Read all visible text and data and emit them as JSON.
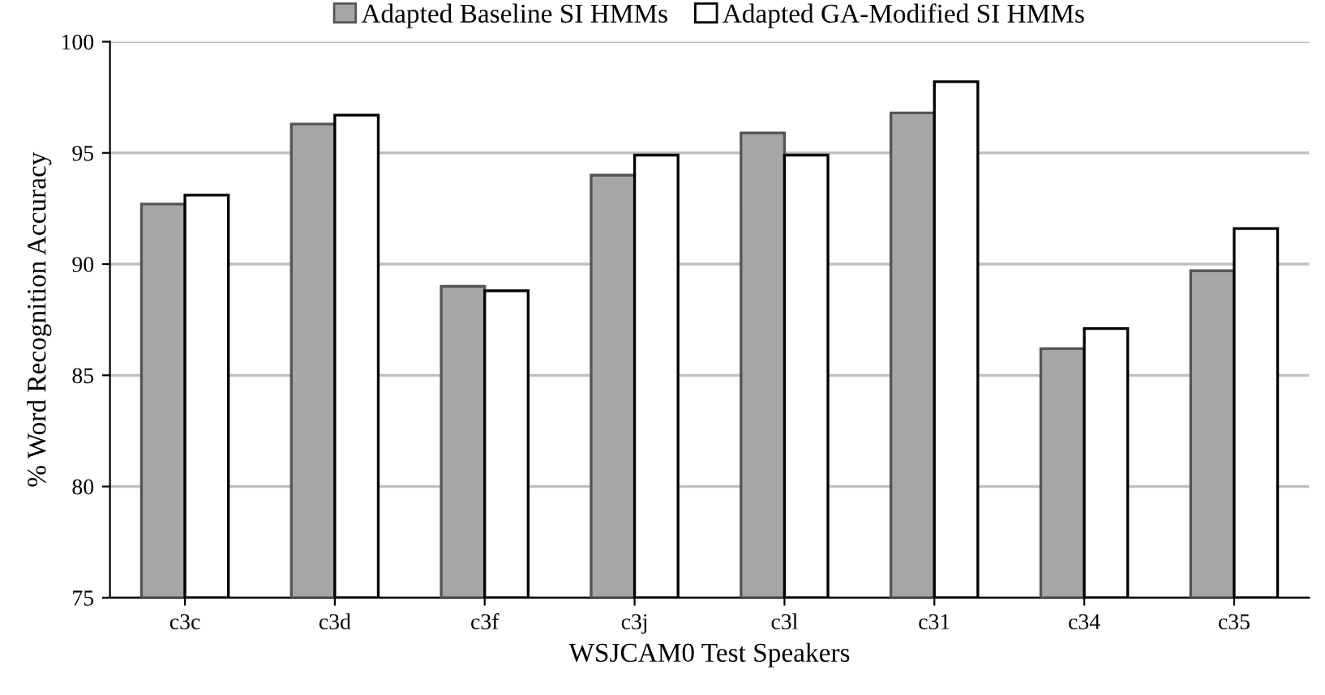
{
  "chart_data": {
    "type": "bar",
    "xlabel": "WSJCAM0 Test Speakers",
    "ylabel": "% Word Recognition Accuracy",
    "categories": [
      "c3c",
      "c3d",
      "c3f",
      "c3j",
      "c3l",
      "c31",
      "c34",
      "c35"
    ],
    "series": [
      {
        "name": "Adapted Baseline SI HMMs",
        "color": "#a6a6a6",
        "values": [
          92.7,
          96.3,
          89.0,
          94.0,
          95.9,
          96.8,
          86.2,
          89.7
        ]
      },
      {
        "name": "Adapted GA-Modified SI HMMs",
        "color": "#ffffff",
        "values": [
          93.1,
          96.7,
          88.8,
          94.9,
          94.9,
          98.2,
          87.1,
          91.6
        ]
      }
    ],
    "ylim": [
      75,
      100
    ],
    "yticks": [
      75,
      80,
      85,
      90,
      95,
      100
    ],
    "grid": "y",
    "legend": "top"
  }
}
